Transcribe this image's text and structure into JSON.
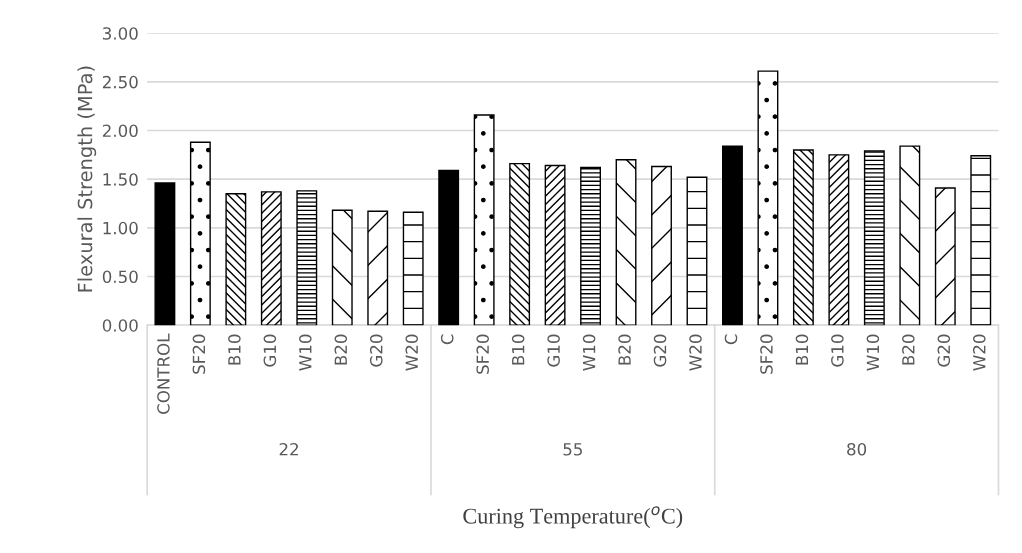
{
  "chart_data": {
    "type": "bar",
    "ylabel": "Flexural Strength (MPa)",
    "xlabel": "Curing Temperature($^{o}$C)",
    "categories": [
      "CONTROL",
      "SF20",
      "B10",
      "G10",
      "W10",
      "B20",
      "G20",
      "W20",
      "C",
      "SF20",
      "B10",
      "G10",
      "W10",
      "B20",
      "G20",
      "W20",
      "C",
      "SF20",
      "B10",
      "G10",
      "W10",
      "B20",
      "G20",
      "W20"
    ],
    "values": [
      1.46,
      1.88,
      1.35,
      1.37,
      1.38,
      1.18,
      1.17,
      1.16,
      1.59,
      2.16,
      1.66,
      1.64,
      1.62,
      1.7,
      1.63,
      1.52,
      1.84,
      2.61,
      1.8,
      1.75,
      1.79,
      1.84,
      1.41,
      1.74
    ],
    "color": "#000000",
    "annotations": [
      "22",
      "55",
      "80"
    ],
    "ylim": [
      0,
      3
    ],
    "yticks": [
      {
        "value": 0,
        "label": "0.00"
      },
      {
        "value": 0.5,
        "label": "0.50"
      },
      {
        "value": 1,
        "label": "1.00"
      },
      {
        "value": 1.5,
        "label": "1.50"
      },
      {
        "value": 2,
        "label": "2.00"
      },
      {
        "value": 2.5,
        "label": "2.50"
      },
      {
        "value": 3,
        "label": "3.00"
      }
    ],
    "grid": "y"
  }
}
